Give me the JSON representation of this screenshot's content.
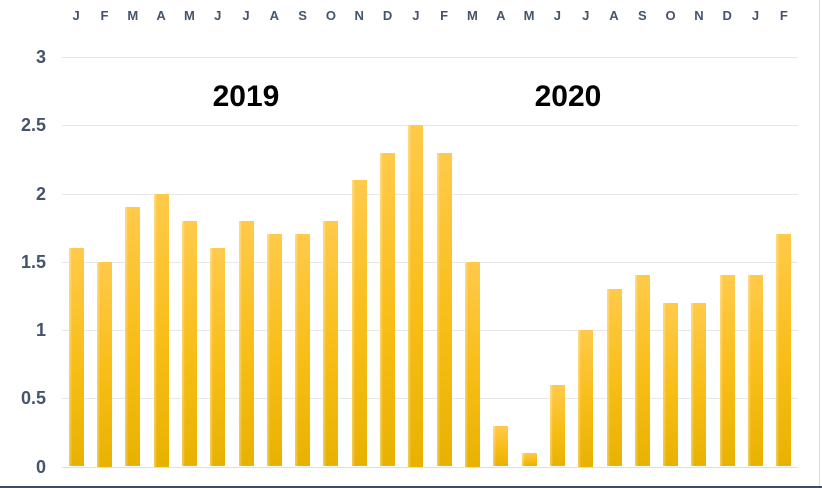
{
  "chart_data": {
    "type": "bar",
    "title": "",
    "x_labels": [
      "J",
      "F",
      "M",
      "A",
      "M",
      "J",
      "J",
      "A",
      "S",
      "O",
      "N",
      "D",
      "J",
      "F",
      "M",
      "A",
      "M",
      "J",
      "J",
      "A",
      "S",
      "O",
      "N",
      "D",
      "J",
      "F"
    ],
    "values": [
      1.6,
      1.5,
      1.9,
      2.0,
      1.8,
      1.6,
      1.8,
      1.7,
      1.7,
      1.8,
      2.1,
      2.3,
      2.5,
      2.3,
      1.5,
      0.3,
      0.1,
      0.6,
      1.0,
      1.3,
      1.4,
      1.2,
      1.2,
      1.4,
      1.4,
      1.7
    ],
    "groups": [
      {
        "label": "2019",
        "months": [
          "J",
          "F",
          "M",
          "A",
          "M",
          "J",
          "J",
          "A",
          "S",
          "O",
          "N",
          "D"
        ],
        "values": [
          1.6,
          1.5,
          1.9,
          2.0,
          1.8,
          1.6,
          1.8,
          1.7,
          1.7,
          1.8,
          2.1,
          2.3
        ]
      },
      {
        "label": "2020",
        "months": [
          "J",
          "F",
          "M",
          "A",
          "M",
          "J",
          "J",
          "A",
          "S",
          "O",
          "N",
          "D"
        ],
        "values": [
          2.5,
          2.3,
          1.5,
          0.3,
          0.1,
          0.6,
          1.0,
          1.3,
          1.4,
          1.2,
          1.2,
          1.4
        ]
      },
      {
        "label_hidden_next_year_partial": "",
        "months": [
          "J",
          "F"
        ],
        "values": [
          1.4,
          1.7
        ]
      }
    ],
    "ylim": [
      0,
      3
    ],
    "yticks": [
      0,
      0.5,
      1,
      1.5,
      2,
      2.5,
      3
    ],
    "ytick_labels": [
      "0",
      "0.5",
      "1",
      "1.5",
      "2",
      "2.5",
      "3"
    ],
    "xlabel": "",
    "ylabel": "",
    "grid": "horizontal",
    "legend": "none",
    "colors": {
      "bar_top": "#ffca4b",
      "bar_mid": "#f8bd16",
      "bar_bottom": "#e8b202",
      "axis_text": "#44546a",
      "gridline": "#e7e7ea",
      "year_title": "#000000",
      "bottom_edge_line": "#3d4d66",
      "background": "#ffffff"
    }
  }
}
